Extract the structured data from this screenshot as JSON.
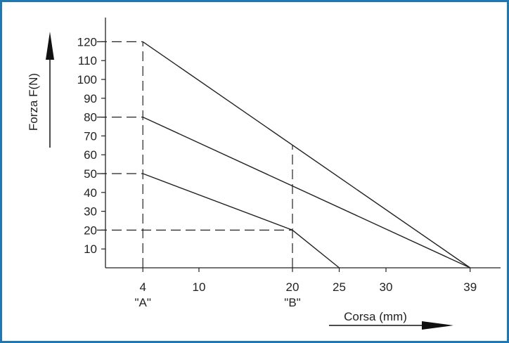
{
  "chart_data": {
    "type": "line",
    "ylabel": "Forza F(N)",
    "xlabel": "Corsa (mm)",
    "xlim": [
      0,
      40
    ],
    "ylim": [
      0,
      120
    ],
    "x_ticks": [
      4,
      10,
      20,
      25,
      30,
      39
    ],
    "y_ticks": [
      10,
      20,
      30,
      40,
      50,
      60,
      70,
      80,
      90,
      100,
      110,
      120
    ],
    "x_markers": [
      {
        "x": 4,
        "label": "\"A\""
      },
      {
        "x": 20,
        "label": "\"B\""
      }
    ],
    "series": [
      {
        "x": [
          4,
          39
        ],
        "y": [
          120,
          0
        ]
      },
      {
        "x": [
          4,
          39
        ],
        "y": [
          80,
          0
        ]
      },
      {
        "x": [
          4,
          20,
          25
        ],
        "y": [
          50,
          20,
          0
        ]
      }
    ],
    "reference_lines": [
      {
        "type": "horizontal",
        "y": 120,
        "x_to": 4
      },
      {
        "type": "horizontal",
        "y": 80,
        "x_to": 4
      },
      {
        "type": "horizontal",
        "y": 50,
        "x_to": 4
      },
      {
        "type": "horizontal",
        "y": 20,
        "x_to": 20
      },
      {
        "type": "vertical",
        "x": 4,
        "y_to": 120
      },
      {
        "type": "vertical",
        "x": 20,
        "y_to": 65
      }
    ],
    "colors": {
      "frame": "#1f77b4",
      "line": "#222222"
    }
  }
}
